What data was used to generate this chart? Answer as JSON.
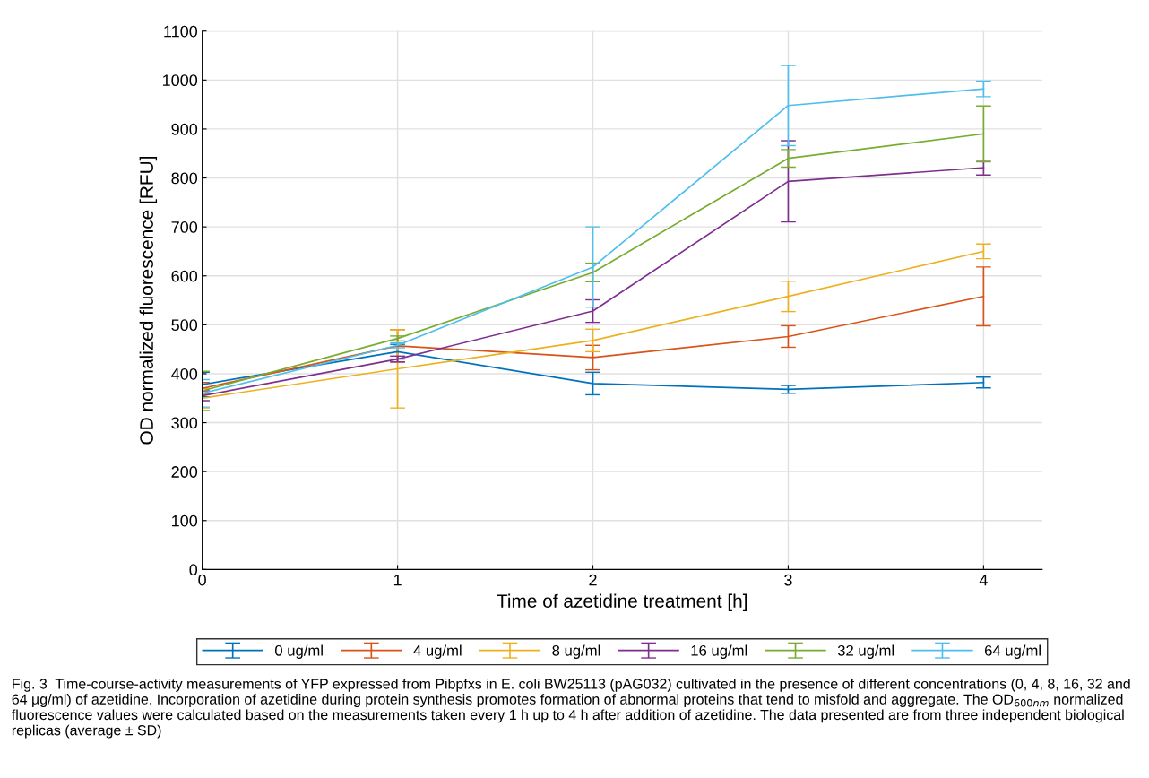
{
  "chart_data": {
    "type": "line",
    "xlabel": "Time of azetidine treatment [h]",
    "ylabel": "OD normalized fluorescence [RFU]",
    "x": [
      0,
      1,
      2,
      3,
      4
    ],
    "xlim": [
      0,
      4.3
    ],
    "xticks": [
      0,
      1,
      2,
      3,
      4
    ],
    "ylim": [
      0,
      1100
    ],
    "yticks": [
      0,
      100,
      200,
      300,
      400,
      500,
      600,
      700,
      800,
      900,
      1000,
      1100
    ],
    "grid": true,
    "legend": "bottom",
    "marker": "none",
    "line_style": "solid",
    "series": [
      {
        "name": "0 ug/ml",
        "color": "#0072bd",
        "values": [
          378,
          445,
          380,
          368,
          382
        ],
        "errors": [
          25,
          15,
          23,
          8,
          11
        ]
      },
      {
        "name": "4 ug/ml",
        "color": "#d95319",
        "values": [
          370,
          457,
          433,
          476,
          558
        ],
        "errors": [
          12,
          33,
          25,
          22,
          60
        ]
      },
      {
        "name": "8 ug/ml",
        "color": "#edb120",
        "values": [
          350,
          410,
          468,
          558,
          650
        ],
        "errors": [
          20,
          80,
          23,
          31,
          15
        ]
      },
      {
        "name": "16 ug/ml",
        "color": "#7e2f8e",
        "values": [
          355,
          430,
          528,
          793,
          821
        ],
        "errors": [
          10,
          6,
          23,
          83,
          15
        ]
      },
      {
        "name": "32 ug/ml",
        "color": "#77ac30",
        "values": [
          365,
          472,
          607,
          840,
          890
        ],
        "errors": [
          40,
          5,
          19,
          18,
          57
        ]
      },
      {
        "name": "64 ug/ml",
        "color": "#4dbeee",
        "values": [
          360,
          458,
          618,
          948,
          982
        ],
        "errors": [
          28,
          5,
          82,
          82,
          16
        ]
      }
    ],
    "annotations": [
      "Fig. 3  Time-course-activity measurements of YFP expressed from Pibpfxs in E. coli BW25113 (pAG032) cultivated in the presence of different concentrations (0, 4, 8, 16, 32 and 64 µg/ml) of azetidine. Incorporation of azetidine during protein synthesis promotes formation of abnormal proteins that tend to misfold and aggregate. The OD$_{600nm}$ normalized fluorescence values were calculated based on the measurements taken every 1 h up to 4 h after addition of azetidine. The data presented are from three independent biological replicas (average ± SD)"
    ]
  }
}
